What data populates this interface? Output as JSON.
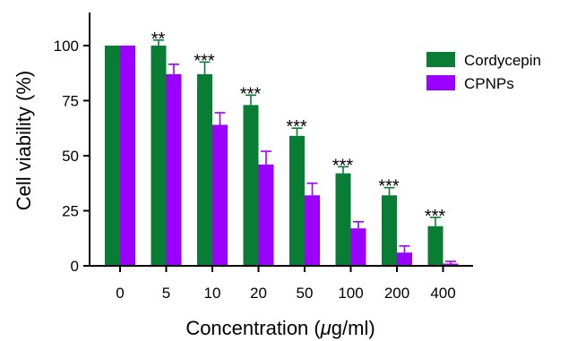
{
  "chart_data": {
    "type": "bar",
    "xlabel_prefix": "Concentration (",
    "xlabel_unit_italic": "μ",
    "xlabel_suffix": "g/ml)",
    "ylabel": "Cell viability (%)",
    "ylim": [
      0,
      115
    ],
    "yticks": [
      0,
      25,
      50,
      75,
      100
    ],
    "categories": [
      "0",
      "5",
      "10",
      "20",
      "50",
      "100",
      "200",
      "400"
    ],
    "series": [
      {
        "name": "Cordycepin",
        "color": "#0a7d35",
        "values": [
          100,
          100,
          87,
          73,
          59,
          42,
          32,
          18
        ],
        "errors": [
          0,
          2.5,
          5.5,
          4.5,
          3.5,
          3,
          3.5,
          4
        ]
      },
      {
        "name": "CPNPs",
        "color": "#9b00ff",
        "values": [
          100,
          87,
          64,
          46,
          32,
          17,
          6,
          1
        ],
        "errors": [
          0,
          4.5,
          5.5,
          6,
          5.5,
          3,
          3,
          1
        ]
      }
    ],
    "significance": [
      "",
      "**",
      "***",
      "***",
      "***",
      "***",
      "***",
      "***"
    ],
    "legend": "right",
    "grid": false
  }
}
